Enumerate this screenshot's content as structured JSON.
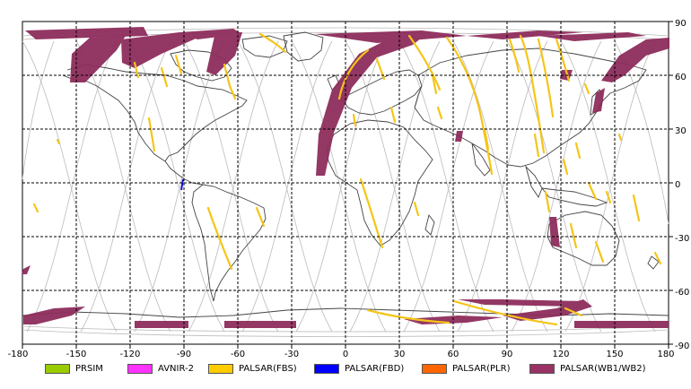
{
  "map": {
    "lon_ticks": [
      "-180",
      "-150",
      "-120",
      "-90",
      "-60",
      "-30",
      "0",
      "30",
      "60",
      "90",
      "120",
      "150",
      "180"
    ],
    "lat_ticks": [
      "90",
      "60",
      "30",
      "0",
      "-30",
      "-60",
      "-90"
    ],
    "colors": {
      "land": "#444444",
      "orbit": "#bbbbbb",
      "grid": "#000000",
      "wb": "#8e2d5c",
      "fbs": "#f5c518",
      "fbd": "#1010d0"
    }
  },
  "legend": [
    {
      "label": "PRSIM",
      "color": "#99cc00"
    },
    {
      "label": "AVNIR-2",
      "color": "#ff33ff"
    },
    {
      "label": "PALSAR(FBS)",
      "color": "#ffcc00"
    },
    {
      "label": "PALSAR(FBD)",
      "color": "#0000ff"
    },
    {
      "label": "PALSAR(PLR)",
      "color": "#ff6600"
    },
    {
      "label": "PALSAR(WB1/WB2)",
      "color": "#993366"
    }
  ]
}
